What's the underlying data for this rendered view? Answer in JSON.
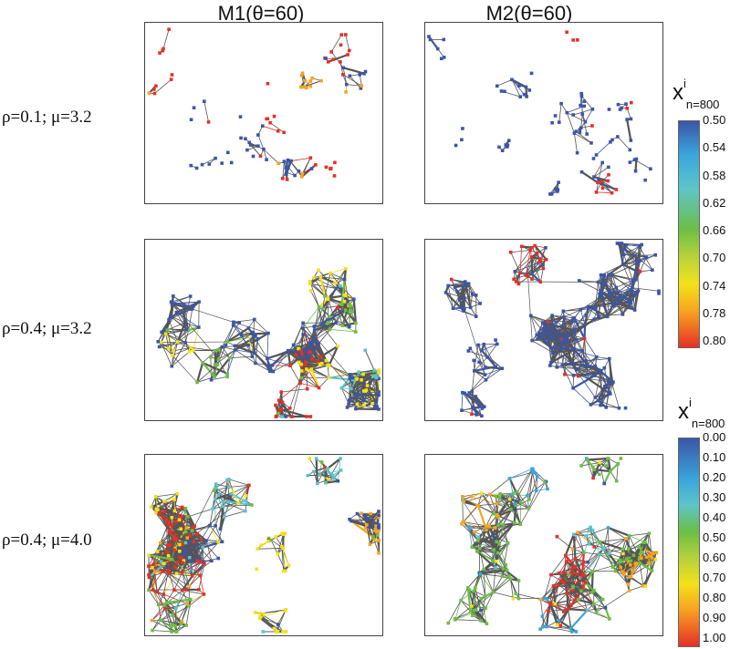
{
  "columns": [
    "M1(θ=60)",
    "M2(θ=60)"
  ],
  "rows": [
    "ρ=0.1; μ=3.2",
    "ρ=0.4; μ=3.2",
    "ρ=0.4; μ=4.0"
  ],
  "colorbar_top": {
    "title_main": "x",
    "title_sup": "i",
    "title_sub": "n=800",
    "ticks": [
      "0.50",
      "0.54",
      "0.58",
      "0.62",
      "0.66",
      "0.70",
      "0.74",
      "0.78",
      "0.80"
    ]
  },
  "colorbar_bottom": {
    "title_main": "x",
    "title_sup": "i",
    "title_sub": "n=800",
    "ticks": [
      "0.00",
      "0.10",
      "0.20",
      "0.30",
      "0.40",
      "0.50",
      "0.60",
      "0.70",
      "0.80",
      "0.90",
      "1.00"
    ]
  },
  "colors": {
    "blue": "#3a56a8",
    "lightblue": "#3aa6dc",
    "cyan": "#5ec4c8",
    "green": "#6cbf45",
    "yellowgreen": "#b8d23a",
    "yellow": "#f2e21a",
    "orange": "#f7a421",
    "red": "#e63027",
    "edge": "#555555"
  }
}
